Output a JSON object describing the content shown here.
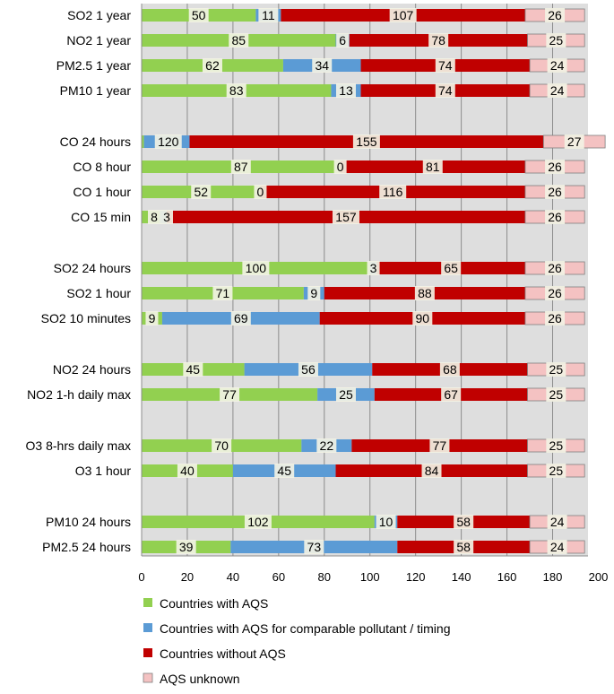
{
  "chart_data": {
    "type": "stacked-bar-horizontal",
    "title": "",
    "xlabel": "",
    "ylabel": "",
    "xlim": [
      0,
      200
    ],
    "xticks": [
      "0",
      "20",
      "40",
      "60",
      "80",
      "100",
      "120",
      "140",
      "160",
      "180",
      "200"
    ],
    "grid": true,
    "legend_position": "bottom",
    "series": [
      {
        "name": "Countries with AQS",
        "color": "#92D050"
      },
      {
        "name": "Countries with AQS for comparable pollutant / timing",
        "color": "#5B9BD5"
      },
      {
        "name": "Countries without AQS",
        "color": "#C00000"
      },
      {
        "name": "AQS unknown",
        "color": "#F4C2C2"
      }
    ],
    "groups": [
      [
        {
          "label": "SO2 1 year",
          "values": [
            50,
            11,
            107,
            26
          ]
        },
        {
          "label": "NO2 1 year",
          "values": [
            85,
            6,
            78,
            25
          ]
        },
        {
          "label": "PM2.5 1 year",
          "values": [
            62,
            34,
            74,
            24
          ]
        },
        {
          "label": "PM10 1 year",
          "values": [
            83,
            13,
            74,
            24
          ]
        }
      ],
      [
        {
          "label": "CO 24 hours",
          "values": [
            1,
            20,
            155,
            27
          ],
          "value_labels": [
            "1",
            "20",
            "155",
            "27"
          ],
          "combined_label": "120"
        },
        {
          "label": "CO 8 hour",
          "values": [
            87,
            0,
            81,
            26
          ]
        },
        {
          "label": "CO 1 hour",
          "values": [
            52,
            0,
            116,
            26
          ]
        },
        {
          "label": "CO 15 min",
          "values": [
            8,
            3,
            157,
            26
          ]
        }
      ],
      [
        {
          "label": "SO2 24 hours",
          "values": [
            100,
            3,
            65,
            26
          ]
        },
        {
          "label": "SO2 1 hour",
          "values": [
            71,
            9,
            88,
            26
          ]
        },
        {
          "label": "SO2 10 minutes",
          "values": [
            9,
            69,
            90,
            26
          ]
        }
      ],
      [
        {
          "label": "NO2 24 hours",
          "values": [
            45,
            56,
            68,
            25
          ]
        },
        {
          "label": "NO2 1-h daily max",
          "values": [
            77,
            25,
            67,
            25
          ]
        }
      ],
      [
        {
          "label": "O3 8-hrs daily max",
          "values": [
            70,
            22,
            77,
            25
          ]
        },
        {
          "label": "O3 1 hour",
          "values": [
            40,
            45,
            84,
            25
          ]
        }
      ],
      [
        {
          "label": "PM10 24 hours",
          "values": [
            102,
            10,
            58,
            24
          ]
        },
        {
          "label": "PM2.5 24 hours",
          "values": [
            39,
            73,
            58,
            24
          ]
        }
      ]
    ]
  }
}
